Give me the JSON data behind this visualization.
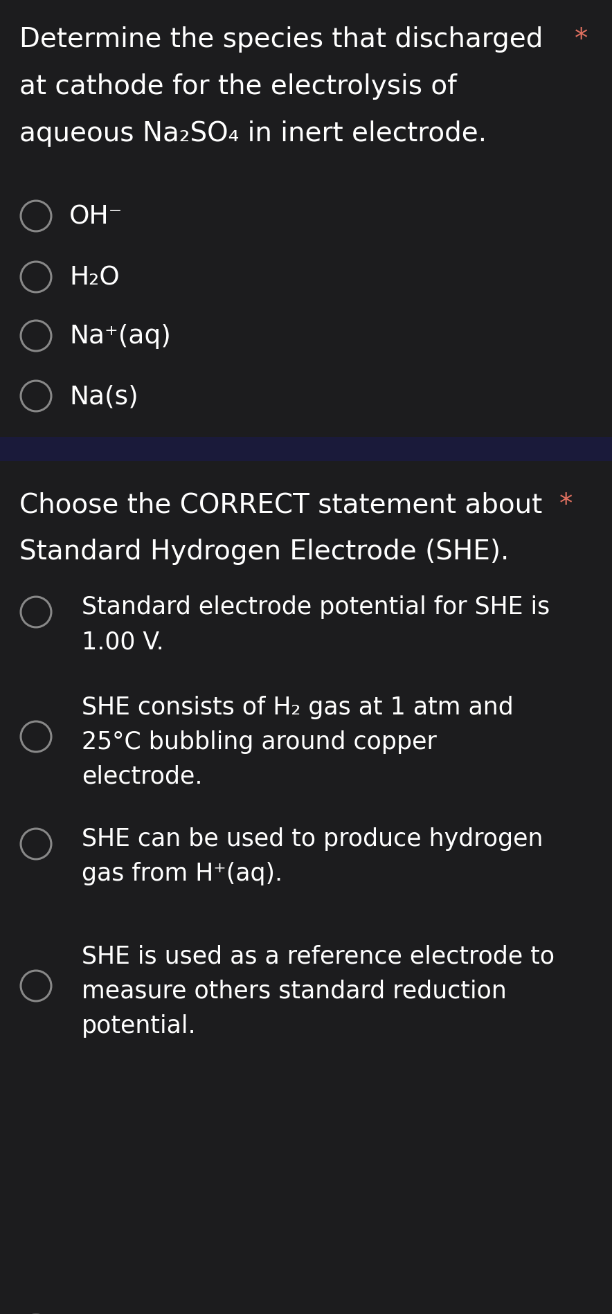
{
  "bg_color": "#1c1c1e",
  "divider_color": "#1a1a3a",
  "text_color": "#ffffff",
  "star_color": "#e07060",
  "circle_color": "#888888",
  "font_size_q1": 28,
  "font_size_opt1": 27,
  "font_size_q2": 28,
  "font_size_opt2": 25,
  "q1_line1": "Determine the species that discharged",
  "q1_line2": "at cathode for the electrolysis of",
  "q1_line3": "aqueous Na₂SO₄ in inert electrode.",
  "q1_options": [
    "OH⁻",
    "H₂O",
    "Na⁺(aq)",
    "Na(s)"
  ],
  "q2_line1": "Choose the CORRECT statement about",
  "q2_line2": "Standard Hydrogen Electrode (SHE).",
  "q2_opt1_l1": "Standard electrode potential for SHE is",
  "q2_opt1_l2": "1.00 V.",
  "q2_opt2_l1": "SHE consists of H₂ gas at 1 atm and",
  "q2_opt2_l2": "25°C bubbling around copper",
  "q2_opt2_l3": "electrode.",
  "q2_opt3_l1": "SHE can be used to produce hydrogen",
  "q2_opt3_l2": "gas from H⁺(aq).",
  "q2_opt4_l1": "SHE is used as a reference electrode to",
  "q2_opt4_l2": "measure others standard reduction",
  "q2_opt4_l3": "potential."
}
